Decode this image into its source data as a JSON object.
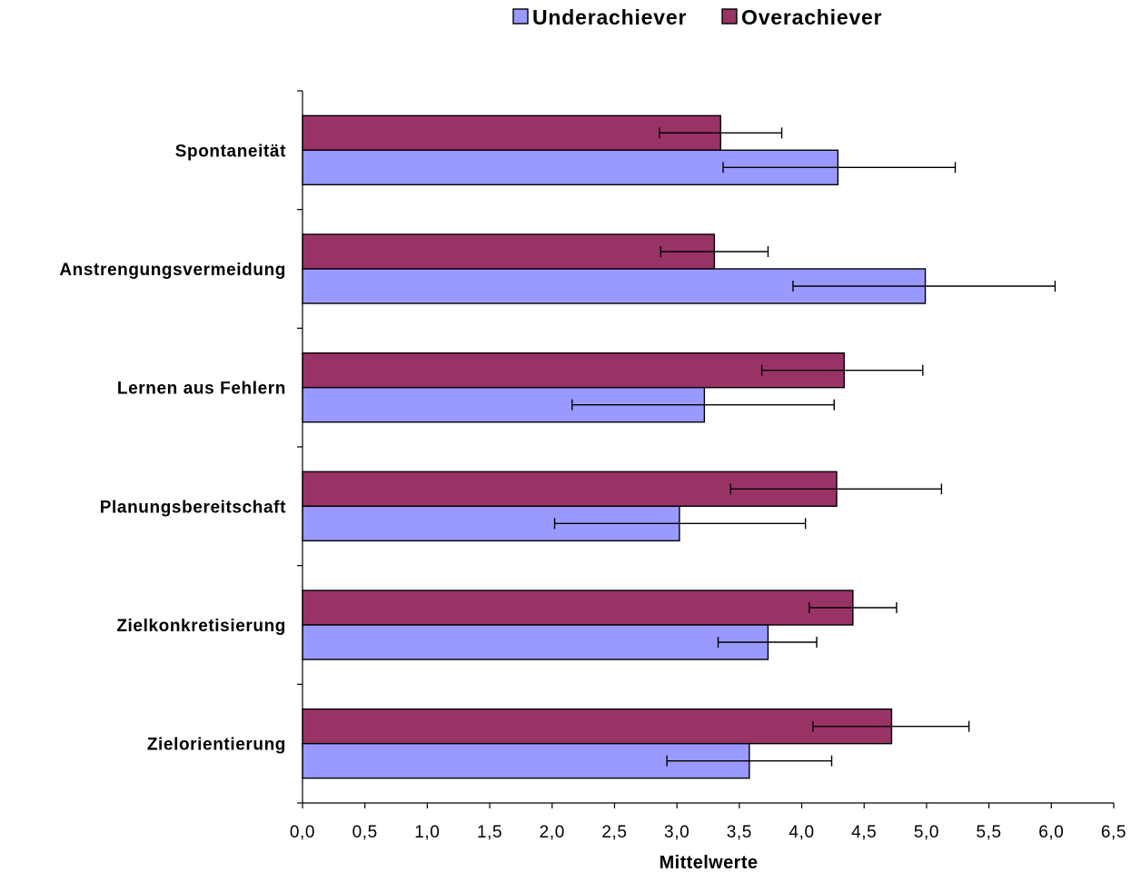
{
  "chart_data": {
    "type": "bar",
    "orientation": "horizontal",
    "categories": [
      "Spontaneität",
      "Anstrengungsvermeidung",
      "Lernen aus Fehlern",
      "Planungsbereitschaft",
      "Zielkonkretisierung",
      "Zielorientierung"
    ],
    "series": [
      {
        "name": "Underachiever",
        "color": "#9999FF",
        "values": [
          4.29,
          4.99,
          3.22,
          3.02,
          3.73,
          3.58
        ],
        "error_low": [
          3.37,
          3.93,
          2.16,
          2.02,
          3.33,
          2.92
        ],
        "error_high": [
          5.23,
          6.03,
          4.26,
          4.03,
          4.12,
          4.24
        ]
      },
      {
        "name": "Overachiever",
        "color": "#993366",
        "values": [
          3.35,
          3.3,
          4.34,
          4.28,
          4.41,
          4.72
        ],
        "error_low": [
          2.86,
          2.87,
          3.68,
          3.43,
          4.06,
          4.09
        ],
        "error_high": [
          3.84,
          3.73,
          4.97,
          5.12,
          4.76,
          5.34
        ]
      }
    ],
    "xlabel": "Mittelwerte",
    "xlim": [
      0,
      6.5
    ],
    "xticks": [
      "0,0",
      "0,5",
      "1,0",
      "1,5",
      "2,0",
      "2,5",
      "3,0",
      "3,5",
      "4,0",
      "4,5",
      "5,0",
      "5,5",
      "6,0",
      "6,5"
    ],
    "grid": false,
    "legend_position": "top"
  }
}
